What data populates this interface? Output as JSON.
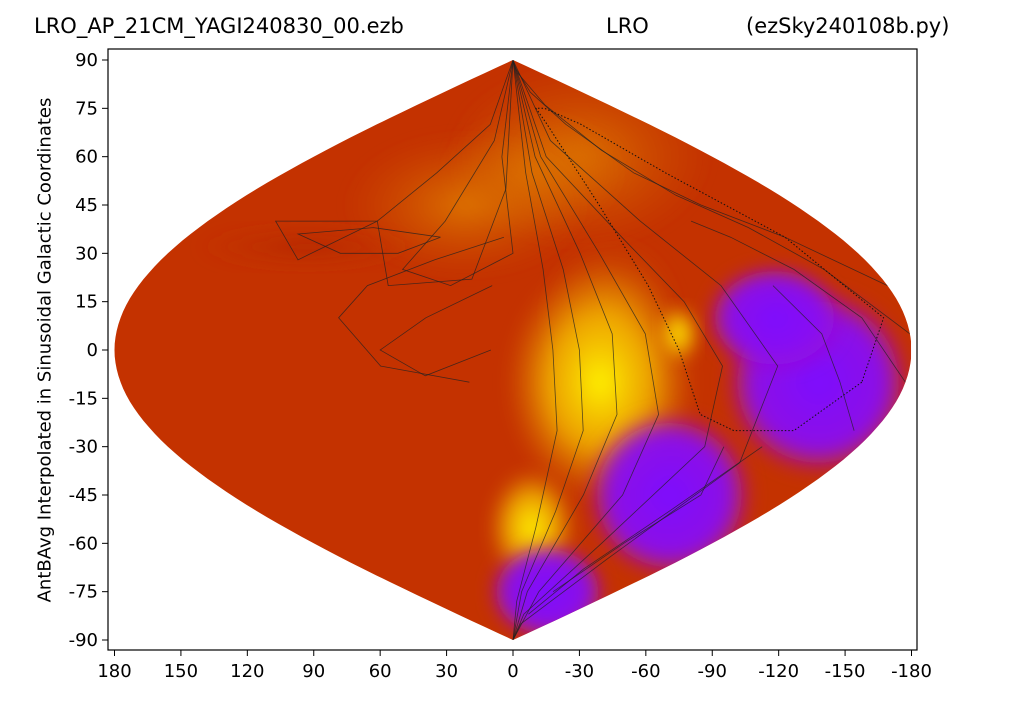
{
  "figure": {
    "title_left": "LRO_AP_21CM_YAGI240830_00.ezb",
    "title_center": "LRO",
    "title_right": "(ezSky240108b.py)"
  },
  "chart_data": {
    "type": "heatmap",
    "projection": "sinusoidal",
    "title": "",
    "xlabel": "",
    "ylabel": "AntBAvg Interpolated in Sinusoidal Galactic Coordinates",
    "xticks": [
      180,
      150,
      120,
      90,
      60,
      30,
      0,
      -30,
      -60,
      -90,
      -120,
      -150,
      -180
    ],
    "xtick_labels": [
      "180",
      "150",
      "120",
      "90",
      "60",
      "30",
      "0",
      "-30",
      "-60",
      "-90",
      "-120",
      "-150",
      "-180"
    ],
    "yticks": [
      90,
      75,
      60,
      45,
      30,
      15,
      0,
      -15,
      -30,
      -45,
      -60,
      -75,
      -90
    ],
    "ytick_labels": [
      "90",
      "75",
      "60",
      "45",
      "30",
      "15",
      "0",
      "-15",
      "-30",
      "-45",
      "-60",
      "-75",
      "-90"
    ],
    "xlim": [
      180,
      -180
    ],
    "ylim": [
      -90,
      90
    ],
    "colormap": "gnuplot",
    "colors": {
      "low": "#7d0dff",
      "mid_low": "#b10d9e",
      "mid": "#c43200",
      "mid_high": "#e07a00",
      "high": "#ffe400",
      "peak": "#fff200",
      "contour": "#222222"
    },
    "grid": false,
    "legend": "none"
  }
}
